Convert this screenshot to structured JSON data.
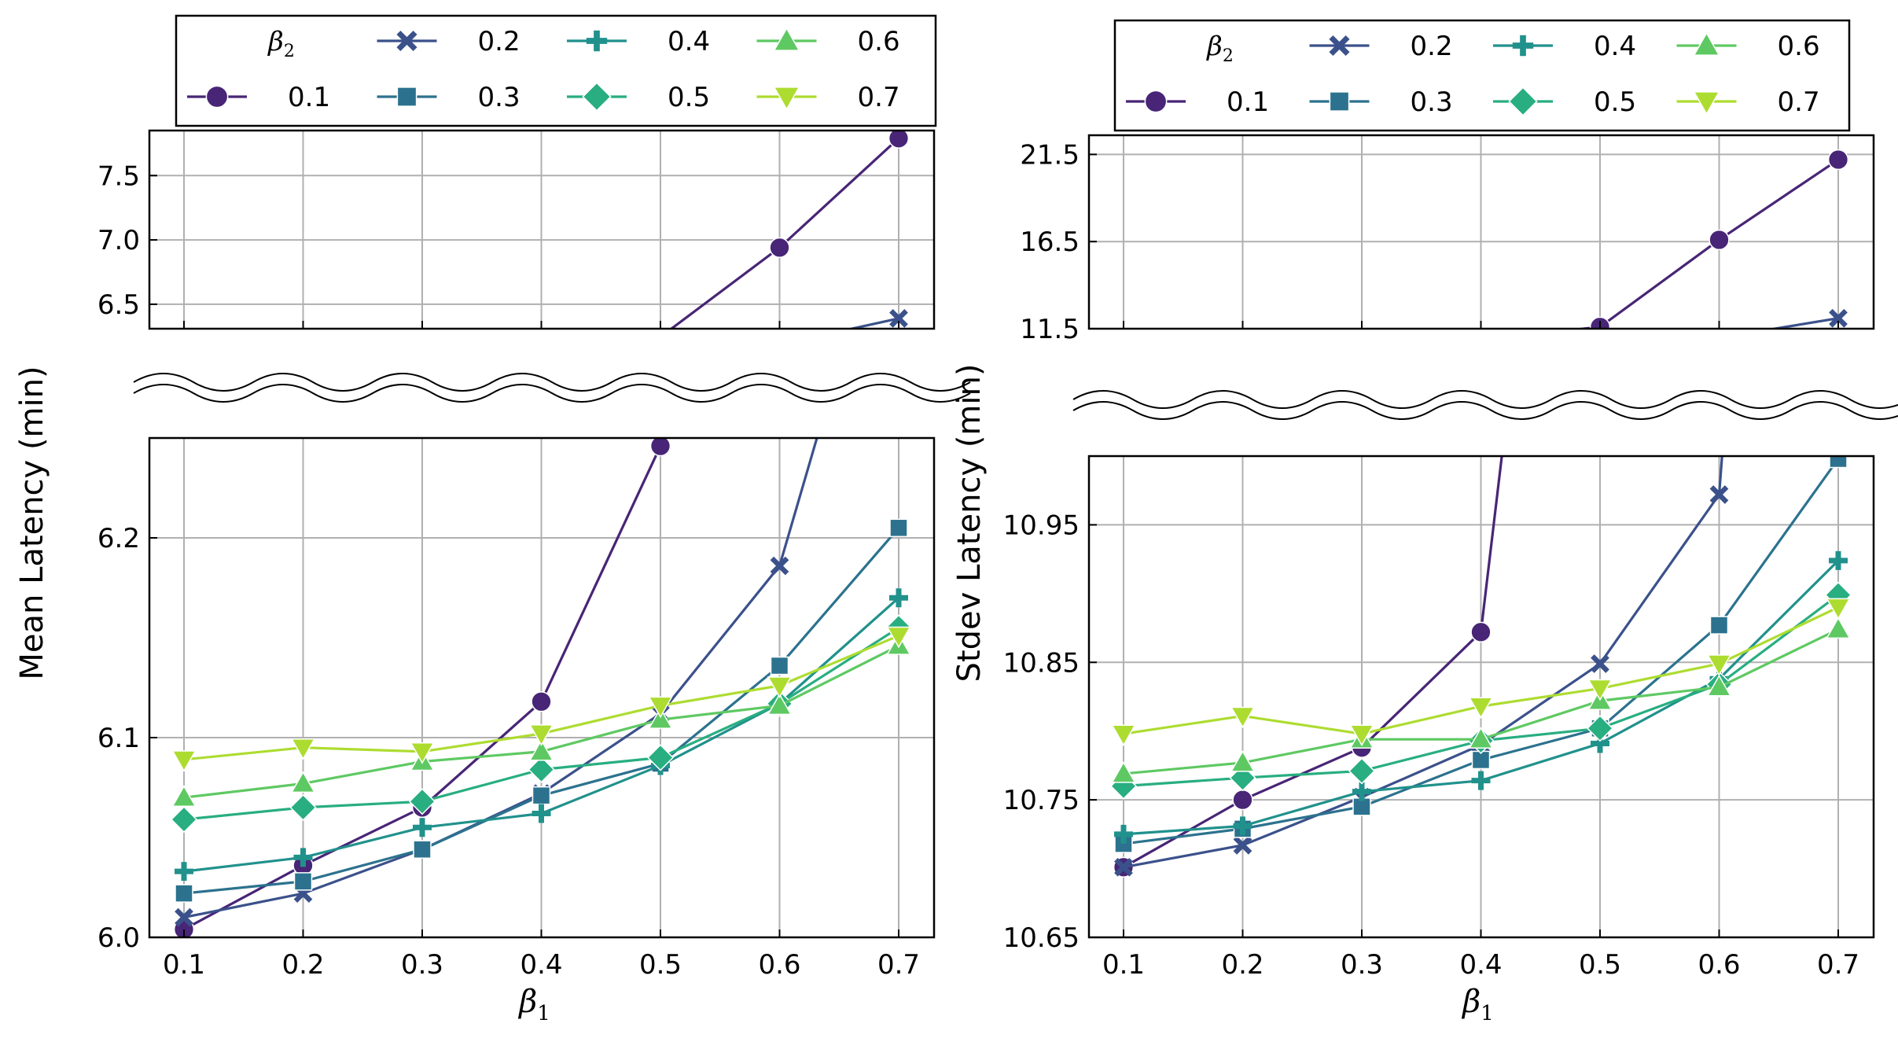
{
  "chart_data": [
    {
      "type": "line",
      "id": "mean",
      "ylabel": "Mean Latency (min)",
      "xlabel": "β",
      "xlabel_sub": "1",
      "legend_title": "β",
      "legend_title_sub": "2",
      "x": [
        0.1,
        0.2,
        0.3,
        0.4,
        0.5,
        0.6,
        0.7
      ],
      "xtick_labels": [
        "0.1",
        "0.2",
        "0.3",
        "0.4",
        "0.5",
        "0.6",
        "0.7"
      ],
      "upper": {
        "ylim": [
          6.31,
          7.85
        ],
        "ticks": [
          6.5,
          7.0,
          7.5
        ],
        "tick_labels": [
          "6.5",
          "7.0",
          "7.5"
        ]
      },
      "lower": {
        "ylim": [
          6.0,
          6.25
        ],
        "ticks": [
          6.0,
          6.1,
          6.2
        ],
        "tick_labels": [
          "6.0",
          "6.1",
          "6.2"
        ]
      },
      "series": [
        {
          "name": "0.1",
          "marker": "circle",
          "color": "#482576",
          "values": [
            6.004,
            6.036,
            6.065,
            6.118,
            6.246,
            6.94,
            7.79
          ]
        },
        {
          "name": "0.2",
          "marker": "x",
          "color": "#3b518b",
          "values": [
            6.01,
            6.022,
            6.044,
            6.072,
            6.112,
            6.186,
            6.39
          ]
        },
        {
          "name": "0.3",
          "marker": "square",
          "color": "#2c728e",
          "values": [
            6.022,
            6.028,
            6.044,
            6.071,
            6.087,
            6.136,
            6.205
          ]
        },
        {
          "name": "0.4",
          "marker": "plus",
          "color": "#21918c",
          "values": [
            6.033,
            6.04,
            6.055,
            6.062,
            6.086,
            6.117,
            6.17
          ]
        },
        {
          "name": "0.5",
          "marker": "diamond",
          "color": "#28ae80",
          "values": [
            6.059,
            6.065,
            6.068,
            6.084,
            6.09,
            6.117,
            6.155
          ]
        },
        {
          "name": "0.6",
          "marker": "triangle-up",
          "color": "#5ec962",
          "values": [
            6.07,
            6.077,
            6.088,
            6.093,
            6.109,
            6.116,
            6.146
          ]
        },
        {
          "name": "0.7",
          "marker": "triangle-down",
          "color": "#addc30",
          "values": [
            6.089,
            6.095,
            6.093,
            6.102,
            6.116,
            6.126,
            6.151
          ]
        }
      ]
    },
    {
      "type": "line",
      "id": "stdev",
      "ylabel": "Stdev Latency (min)",
      "xlabel": "β",
      "xlabel_sub": "1",
      "legend_title": "β",
      "legend_title_sub": "2",
      "x": [
        0.1,
        0.2,
        0.3,
        0.4,
        0.5,
        0.6,
        0.7
      ],
      "xtick_labels": [
        "0.1",
        "0.2",
        "0.3",
        "0.4",
        "0.5",
        "0.6",
        "0.7"
      ],
      "upper": {
        "ylim": [
          11.5,
          22.6
        ],
        "ticks": [
          11.5,
          16.5,
          21.5
        ],
        "tick_labels": [
          "11.5",
          "16.5",
          "21.5"
        ]
      },
      "lower": {
        "ylim": [
          10.65,
          11.0
        ],
        "ticks": [
          10.65,
          10.75,
          10.85,
          10.95
        ],
        "tick_labels": [
          "10.65",
          "10.75",
          "10.85",
          "10.95"
        ]
      },
      "series": [
        {
          "name": "0.1",
          "marker": "circle",
          "color": "#482576",
          "values": [
            10.701,
            10.75,
            10.788,
            10.872,
            11.6,
            16.6,
            21.2
          ]
        },
        {
          "name": "0.2",
          "marker": "x",
          "color": "#3b518b",
          "values": [
            10.701,
            10.717,
            10.752,
            10.79,
            10.849,
            10.972,
            12.1
          ]
        },
        {
          "name": "0.3",
          "marker": "square",
          "color": "#2c728e",
          "values": [
            10.718,
            10.729,
            10.745,
            10.779,
            10.802,
            10.877,
            10.998
          ]
        },
        {
          "name": "0.4",
          "marker": "plus",
          "color": "#21918c",
          "values": [
            10.725,
            10.731,
            10.756,
            10.764,
            10.791,
            10.838,
            10.924
          ]
        },
        {
          "name": "0.5",
          "marker": "diamond",
          "color": "#28ae80",
          "values": [
            10.76,
            10.766,
            10.771,
            10.793,
            10.802,
            10.834,
            10.899
          ]
        },
        {
          "name": "0.6",
          "marker": "triangle-up",
          "color": "#5ec962",
          "values": [
            10.769,
            10.777,
            10.794,
            10.794,
            10.822,
            10.832,
            10.874
          ]
        },
        {
          "name": "0.7",
          "marker": "triangle-down",
          "color": "#addc30",
          "values": [
            10.798,
            10.811,
            10.798,
            10.818,
            10.831,
            10.849,
            10.89
          ]
        }
      ]
    }
  ]
}
